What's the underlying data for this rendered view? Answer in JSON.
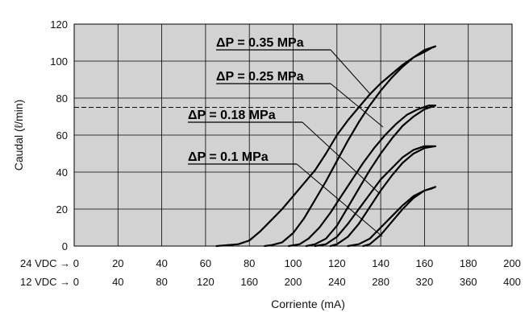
{
  "chart_data": {
    "type": "line",
    "xlabel": "Corriente (mA)",
    "ylabel": "Caudal (ℓ/min)",
    "xlim": [
      0,
      200
    ],
    "ylim": [
      0,
      120
    ],
    "grid": true,
    "y_ticks": [
      "0",
      "20",
      "40",
      "60",
      "80",
      "100",
      "120"
    ],
    "x_tick_rows": [
      {
        "prefix": "24 VDC → 0",
        "ticks": [
          "20",
          "40",
          "60",
          "80",
          "100",
          "120",
          "140",
          "160",
          "180",
          "200"
        ]
      },
      {
        "prefix": "12 VDC → 0",
        "ticks": [
          "40",
          "80",
          "120",
          "160",
          "200",
          "240",
          "280",
          "320",
          "360",
          "400"
        ]
      }
    ],
    "reference_line": {
      "y": 75,
      "style": "dashed"
    },
    "series": [
      {
        "name": "ΔP = 0.35 MPa",
        "up": {
          "x": [
            65,
            75,
            80,
            85,
            90,
            95,
            100,
            105,
            110,
            115,
            120,
            125,
            130,
            135,
            140,
            145,
            150,
            155,
            160,
            163,
            165
          ],
          "y": [
            0,
            1,
            3,
            8,
            14,
            20,
            27,
            34,
            41,
            50,
            60,
            68,
            75,
            82,
            88,
            93,
            98,
            102,
            105,
            107,
            108
          ]
        },
        "down": {
          "x": [
            165,
            160,
            155,
            150,
            145,
            140,
            135,
            130,
            125,
            120,
            115,
            110,
            105,
            100,
            95,
            90,
            87
          ],
          "y": [
            108,
            106,
            102,
            97,
            91,
            84,
            76,
            67,
            57,
            46,
            35,
            25,
            15,
            7,
            2,
            0.5,
            0
          ]
        }
      },
      {
        "name": "ΔP = 0.25 MPa",
        "up": {
          "x": [
            98,
            103,
            107,
            112,
            117,
            122,
            127,
            132,
            137,
            142,
            147,
            152,
            157,
            162,
            165
          ],
          "y": [
            0,
            1,
            4,
            10,
            18,
            27,
            36,
            45,
            53,
            60,
            66,
            71,
            74,
            76,
            76
          ]
        },
        "down": {
          "x": [
            165,
            160,
            155,
            150,
            145,
            140,
            135,
            130,
            125,
            120,
            115,
            110,
            106
          ],
          "y": [
            76,
            74,
            70,
            65,
            58,
            50,
            41,
            31,
            21,
            11,
            4,
            1,
            0
          ]
        }
      },
      {
        "name": "ΔP = 0.18 MPa",
        "up": {
          "x": [
            110,
            115,
            120,
            125,
            130,
            135,
            140,
            145,
            150,
            155,
            160,
            163,
            165
          ],
          "y": [
            0,
            1,
            5,
            12,
            20,
            28,
            36,
            42,
            48,
            52,
            54,
            54,
            54
          ]
        },
        "down": {
          "x": [
            165,
            160,
            155,
            150,
            145,
            140,
            135,
            130,
            125,
            120,
            117
          ],
          "y": [
            54,
            53,
            50,
            45,
            38,
            30,
            21,
            12,
            5,
            1,
            0
          ]
        }
      },
      {
        "name": "ΔP = 0.1 MPa",
        "up": {
          "x": [
            125,
            130,
            135,
            140,
            145,
            150,
            155,
            160,
            163,
            165
          ],
          "y": [
            0,
            1,
            4,
            10,
            16,
            22,
            27,
            30,
            31,
            32
          ]
        },
        "down": {
          "x": [
            165,
            160,
            155,
            150,
            145,
            140,
            135,
            132
          ],
          "y": [
            32,
            30,
            26,
            20,
            13,
            6,
            1,
            0
          ]
        }
      }
    ],
    "curve_labels": [
      "ΔP = 0.35 MPa",
      "ΔP = 0.25 MPa",
      "ΔP = 0.18 MPa",
      "ΔP = 0.1 MPa"
    ]
  }
}
